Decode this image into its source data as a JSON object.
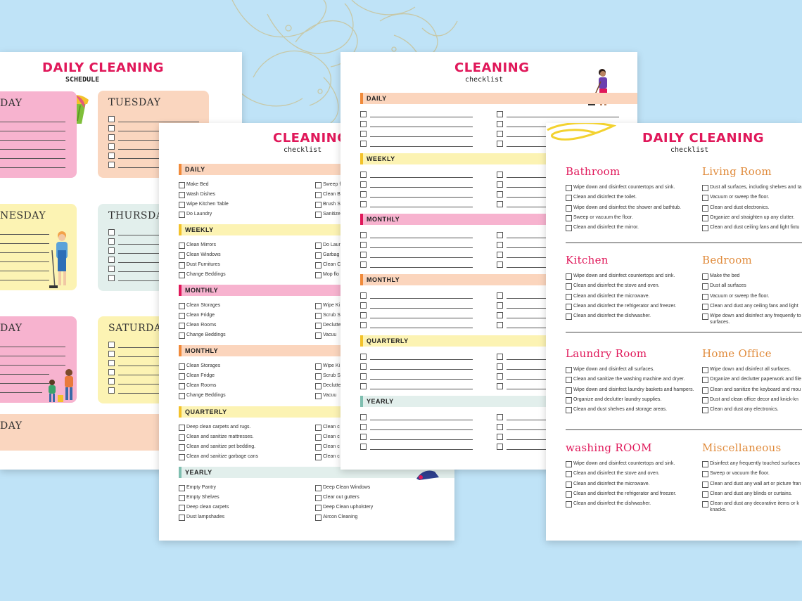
{
  "colors": {
    "background": "#bfe3f7",
    "title": "#e0185a",
    "orange": "#fbd5bd",
    "yellow": "#fcf3b3",
    "pink": "#f7b3cf",
    "mint": "#e2efec",
    "peach": "#fad6bf"
  },
  "schedule": {
    "title": "DAILY CLEANING",
    "subtitle": "SCHEDULE",
    "days": [
      {
        "label": "DAY"
      },
      {
        "label": "TUESDAY"
      },
      {
        "label": "NESDAY"
      },
      {
        "label": "THURSDAY"
      },
      {
        "label": "DAY"
      },
      {
        "label": "SATURDAY"
      },
      {
        "label": "DAY"
      }
    ]
  },
  "checklist_a": {
    "title": "CLEANING",
    "subtitle": "checklist",
    "sections": [
      {
        "label": "DAILY",
        "left": [
          "Make Bed",
          "Wash Dishes",
          "Wipe Kitchen Table",
          "Do Laundry"
        ],
        "right": [
          "Sweep f",
          "Clean B",
          "Brush Sl",
          "Sanitize"
        ]
      },
      {
        "label": "WEEKLY",
        "left": [
          "Clean Mirrors",
          "Clean Windows",
          "Dust Furnitures",
          "Change Beddings"
        ],
        "right": [
          "Do Laun",
          "Garbag",
          "Clean C",
          "Mop flo"
        ]
      },
      {
        "label": "MONTHLY",
        "left": [
          "Clean Storages",
          "Clean Fridge",
          "Clean Rooms",
          "Change Beddings"
        ],
        "right": [
          "Wipe Ki",
          "Scrub S",
          "Declutte",
          "Vacuu"
        ]
      },
      {
        "label": "MONTHLY",
        "left": [
          "Clean Storages",
          "Clean Fridge",
          "Clean Rooms",
          "Change Beddings"
        ],
        "right": [
          "Wipe Ki",
          "Scrub S",
          "Declutte",
          "Vacuu"
        ]
      },
      {
        "label": "QUARTERLY",
        "left": [
          "Deep clean carpets and rugs.",
          "Clean and sanitize mattresses.",
          "Clean and sanitize pet bedding.",
          "Clean and sanitize garbage cans"
        ],
        "right": [
          "Clean c",
          "Clean c",
          "Clean c",
          "Clean c"
        ]
      },
      {
        "label": "YEARLY",
        "left": [
          "Empty Pantry",
          "Empty Shelves",
          "Deep clean carpets",
          "Dust lampshades"
        ],
        "right": [
          "Deep Clean Windows",
          "Clear out gutters",
          "Deep Clean upholstery",
          "Aircon Cleaning"
        ]
      }
    ]
  },
  "checklist_b": {
    "title": "CLEANING",
    "subtitle": "checklist",
    "sections": [
      {
        "label": "DAILY"
      },
      {
        "label": "WEEKLY"
      },
      {
        "label": "MONTHLY"
      },
      {
        "label": "MONTHLY"
      },
      {
        "label": "QUARTERLY"
      },
      {
        "label": "YEARLY"
      }
    ]
  },
  "checklist_c": {
    "title": "DAILY CLEANING",
    "subtitle": "checklist",
    "rooms": [
      {
        "title": "Bathroom",
        "color": "#e0185a",
        "items": [
          "Wipe down and disinfect countertops and sink.",
          "Clean and disinfect the toilet.",
          "Wipe down and disinfect the shower and bathtub.",
          "Sweep or vacuum the floor.",
          "Clean and disinfect the mirror."
        ]
      },
      {
        "title": "Living Room",
        "color": "#e08a3a",
        "items": [
          "Dust all surfaces, including shelves and ta",
          "Vacuum or sweep the floor.",
          "Clean and dust electronics.",
          "Organize and straighten up any clutter.",
          "Clean and dust ceiling fans and light fixtu"
        ]
      },
      {
        "title": "Kitchen",
        "color": "#e0185a",
        "items": [
          "Wipe down and disinfect countertops and sink.",
          "Clean and disinfect the stove and oven.",
          "Clean and disinfect the microwave.",
          "Clean and disinfect the refrigerator and freezer.",
          "Clean and disinfect the dishwasher."
        ]
      },
      {
        "title": "Bedroom",
        "color": "#e08a3a",
        "items": [
          "Make the bed",
          "Dust all surfaces",
          "Vacuum or sweep the floor.",
          "Clean and dust any ceiling fans and light",
          "Wipe down and disinfect any frequently to",
          "surfaces."
        ]
      },
      {
        "title": "Laundry Room",
        "color": "#e0185a",
        "items": [
          "Wipe down and disinfect all surfaces.",
          "Clean and sanitize the washing machine and dryer.",
          "Wipe down and disinfect laundry baskets and hampers.",
          "Organize and declutter laundry supplies.",
          "Clean and dust shelves and storage areas."
        ]
      },
      {
        "title": "Home Office",
        "color": "#e08a3a",
        "items": [
          "Wipe down and disinfect all surfaces.",
          "Organize and declutter paperwork and file",
          "Clean and sanitize the keyboard and mou",
          "Dust and clean office decor and knick-kn",
          "Clean and dust any electronics."
        ]
      },
      {
        "title": "washing ROOM",
        "color": "#e0185a",
        "items": [
          "Wipe down and disinfect countertops and sink.",
          "Clean and disinfect the stove and oven.",
          "Clean and disinfect the microwave.",
          "Clean and disinfect the refrigerator and freezer.",
          "Clean and disinfect the dishwasher."
        ]
      },
      {
        "title": "Miscellaneous",
        "color": "#e08a3a",
        "items": [
          "Disinfect any frequently touched surfaces",
          "Sweep or vacuum the floor.",
          "Clean and dust any wall art or picture fran",
          "Clean and dust any blinds or curtains.",
          "Clean and dust any decorative items or k",
          "knacks."
        ]
      }
    ]
  }
}
